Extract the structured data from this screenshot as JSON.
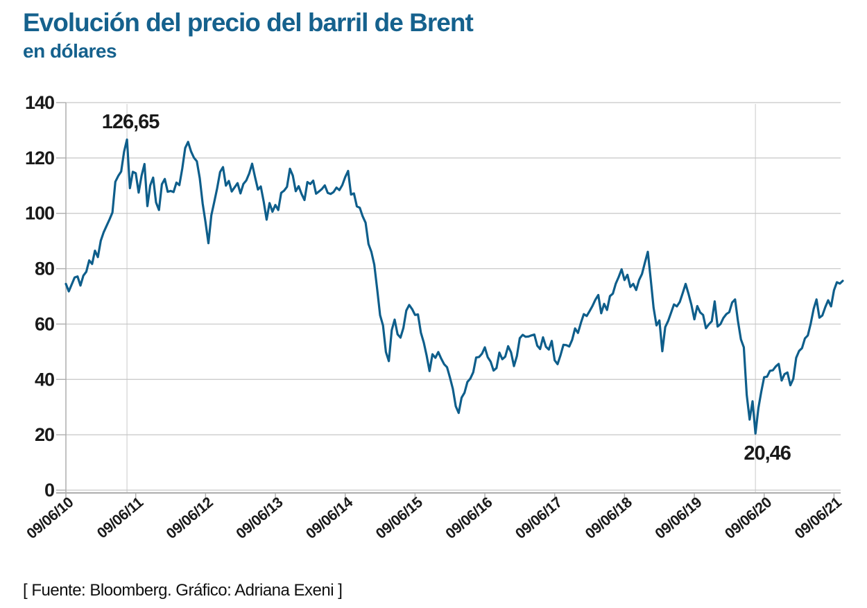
{
  "header": {
    "title": "Evolución del precio del barril de Brent",
    "subtitle": "en dólares",
    "title_color": "#15618d"
  },
  "footer": {
    "source": "[ Fuente: Bloomberg. Gráfico: Adriana Exeni ]"
  },
  "chart_data": {
    "type": "line",
    "title": "Evolución del precio del barril de Brent",
    "subtitle": "en dólares",
    "xlabel": "",
    "ylabel": "",
    "ylim": [
      0,
      140
    ],
    "y_ticks": [
      0,
      20,
      40,
      60,
      80,
      100,
      120,
      140
    ],
    "x_tick_labels": [
      "09/06/10",
      "09/06/11",
      "09/06/12",
      "09/06/13",
      "09/06/14",
      "09/06/15",
      "09/06/16",
      "09/06/17",
      "09/06/18",
      "09/06/19",
      "09/06/20",
      "09/06/21"
    ],
    "x_tick_every_points": 24,
    "grid": "horizontal",
    "legend": "none",
    "colors": {
      "line": "#0e5e8b",
      "grid": "#c6c6c6",
      "axis": "#adadad",
      "marker_line": "#d2d2d2",
      "tick_text": "#1a1a1a"
    },
    "annotations": [
      {
        "label": "126,65",
        "value": 126.65,
        "at": "max"
      },
      {
        "label": "20,46",
        "value": 20.46,
        "at": "min"
      }
    ],
    "series": [
      {
        "name": "Precio del barril de Brent (USD)",
        "sampling": "semi-monthly 09/06/2010 - 21/06/2021",
        "values": [
          74.5,
          71.8,
          74.3,
          76.8,
          77.2,
          73.9,
          77.5,
          78.9,
          83.0,
          81.7,
          86.5,
          84.2,
          90.1,
          93.2,
          95.5,
          97.8,
          100.3,
          111.4,
          113.5,
          115.1,
          122.3,
          126.65,
          109.1,
          115.0,
          114.5,
          107.5,
          113.6,
          117.8,
          102.6,
          110.1,
          112.9,
          103.9,
          101.2,
          110.5,
          112.4,
          107.8,
          108.1,
          107.7,
          111.1,
          110.2,
          116.2,
          123.6,
          125.8,
          122.4,
          120.1,
          118.8,
          112.7,
          103.5,
          96.8,
          89.2,
          99.3,
          104.1,
          109.1,
          114.9,
          116.7,
          110.0,
          111.7,
          107.9,
          109.4,
          110.9,
          107.2,
          110.6,
          111.9,
          114.4,
          117.9,
          113.1,
          108.6,
          109.7,
          104.2,
          97.7,
          103.7,
          100.6,
          103.0,
          101.2,
          107.4,
          108.2,
          109.6,
          116.1,
          113.6,
          108.0,
          109.8,
          107.0,
          104.8,
          111.3,
          110.6,
          111.8,
          107.1,
          107.9,
          108.8,
          110.1,
          107.4,
          107.0,
          107.7,
          109.3,
          108.4,
          110.2,
          113.1,
          115.3,
          106.8,
          107.2,
          102.5,
          102.0,
          98.9,
          96.6,
          88.9,
          86.1,
          81.5,
          72.6,
          63.2,
          59.5,
          49.9,
          46.6,
          57.8,
          61.6,
          56.3,
          55.1,
          58.6,
          64.9,
          66.9,
          65.4,
          63.3,
          63.5,
          56.9,
          53.3,
          48.6,
          43.0,
          49.1,
          47.8,
          49.9,
          47.5,
          45.5,
          44.4,
          40.7,
          36.6,
          30.3,
          27.9,
          33.4,
          35.2,
          39.1,
          40.3,
          42.6,
          47.9,
          48.1,
          49.3,
          51.6,
          48.0,
          46.4,
          43.2,
          44.1,
          49.7,
          47.3,
          48.2,
          52.0,
          49.8,
          44.8,
          48.4,
          54.9,
          56.1,
          55.4,
          55.5,
          55.9,
          56.2,
          52.2,
          51.0,
          55.2,
          51.8,
          50.8,
          53.9,
          46.9,
          45.5,
          48.7,
          52.5,
          52.4,
          51.9,
          54.3,
          58.4,
          56.8,
          60.4,
          63.6,
          62.9,
          64.7,
          66.6,
          68.8,
          70.5,
          63.9,
          67.3,
          65.1,
          70.1,
          71.0,
          74.6,
          77.0,
          79.8,
          75.9,
          77.8,
          73.4,
          74.5,
          72.3,
          75.9,
          78.1,
          82.2,
          86.1,
          76.4,
          65.9,
          59.5,
          61.3,
          50.2,
          58.9,
          61.1,
          64.1,
          67.1,
          66.4,
          68.0,
          71.2,
          74.5,
          70.9,
          66.9,
          61.7,
          66.5,
          64.2,
          63.3,
          58.5,
          59.9,
          61.0,
          68.2,
          59.1,
          60.0,
          62.2,
          63.6,
          64.3,
          67.8,
          68.9,
          61.0,
          54.5,
          51.6,
          34.4,
          25.5,
          32.1,
          20.46,
          29.6,
          35.5,
          40.8,
          41.0,
          43.1,
          43.3,
          44.7,
          45.6,
          39.6,
          41.9,
          42.5,
          37.9,
          40.2,
          47.8,
          50.3,
          51.3,
          54.8,
          55.9,
          60.2,
          65.5,
          68.9,
          62.3,
          63.1,
          66.1,
          68.6,
          66.4,
          72.2,
          75.1,
          74.6,
          75.6
        ]
      }
    ]
  }
}
